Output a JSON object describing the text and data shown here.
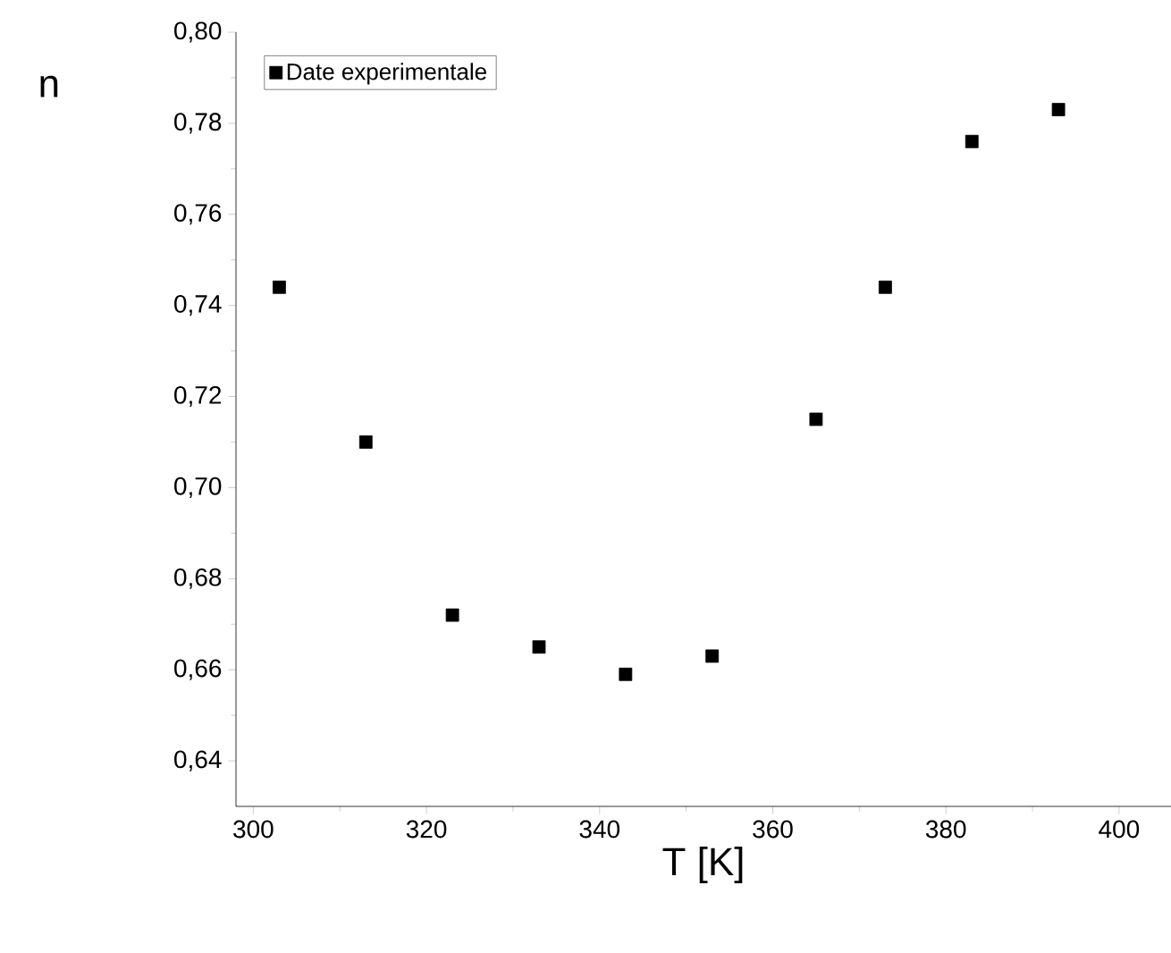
{
  "chart_data": {
    "type": "scatter",
    "xlabel": "T [K]",
    "ylabel": "n",
    "x": [
      303,
      313,
      323,
      333,
      343,
      353,
      365,
      373,
      383,
      393
    ],
    "series": [
      {
        "name": "Date experimentale",
        "color": "#000000",
        "values": [
          0.744,
          0.71,
          0.672,
          0.665,
          0.659,
          0.663,
          0.715,
          0.744,
          0.776,
          0.783
        ]
      }
    ],
    "marker": "square",
    "legend": "top left",
    "grid": false,
    "xlim": [
      298,
      406
    ],
    "ylim": [
      0.63,
      0.8
    ],
    "xticks": [
      300,
      320,
      340,
      360,
      380,
      400
    ],
    "yticks": [
      {
        "value": 0.64,
        "label": "0,64"
      },
      {
        "value": 0.66,
        "label": "0,66"
      },
      {
        "value": 0.68,
        "label": "0,68"
      },
      {
        "value": 0.7,
        "label": "0,70"
      },
      {
        "value": 0.72,
        "label": "0,72"
      },
      {
        "value": 0.74,
        "label": "0,74"
      },
      {
        "value": 0.76,
        "label": "0,76"
      },
      {
        "value": 0.78,
        "label": "0,78"
      },
      {
        "value": 0.8,
        "label": "0,80"
      }
    ]
  }
}
